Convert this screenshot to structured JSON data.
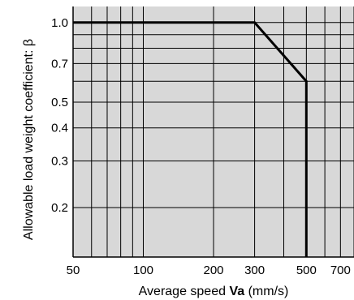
{
  "chart_data": {
    "type": "line",
    "title": "",
    "xlabel": {
      "prefix": "Average speed ",
      "var": "Va",
      "suffix": " (mm/s)"
    },
    "ylabel": "Allowable load weight coefficient: β",
    "x_scale": "log",
    "y_scale": "log",
    "xlim": [
      50,
      800
    ],
    "ylim": [
      0.13,
      1.15
    ],
    "x_ticks": [
      50,
      100,
      200,
      300,
      500,
      700
    ],
    "x_tick_labels": [
      "50",
      "100",
      "200",
      "300",
      "500",
      "700"
    ],
    "x_grid": [
      50,
      60,
      70,
      80,
      90,
      100,
      200,
      300,
      400,
      500,
      600,
      700,
      800
    ],
    "y_ticks": [
      1.0,
      0.7,
      0.5,
      0.4,
      0.3,
      0.2
    ],
    "y_tick_labels": [
      "1.0",
      "0.7",
      "0.5",
      "0.4",
      "0.3",
      "0.2"
    ],
    "y_grid": [
      1.0,
      0.9,
      0.8,
      0.7,
      0.6,
      0.5,
      0.4,
      0.3,
      0.2
    ],
    "grid": true,
    "plot_background": "#d8d8d8",
    "line_color": "#000000",
    "series": [
      {
        "x": [
          50,
          300,
          500,
          500
        ],
        "y": [
          1.0,
          1.0,
          0.6,
          0.13
        ]
      }
    ]
  }
}
